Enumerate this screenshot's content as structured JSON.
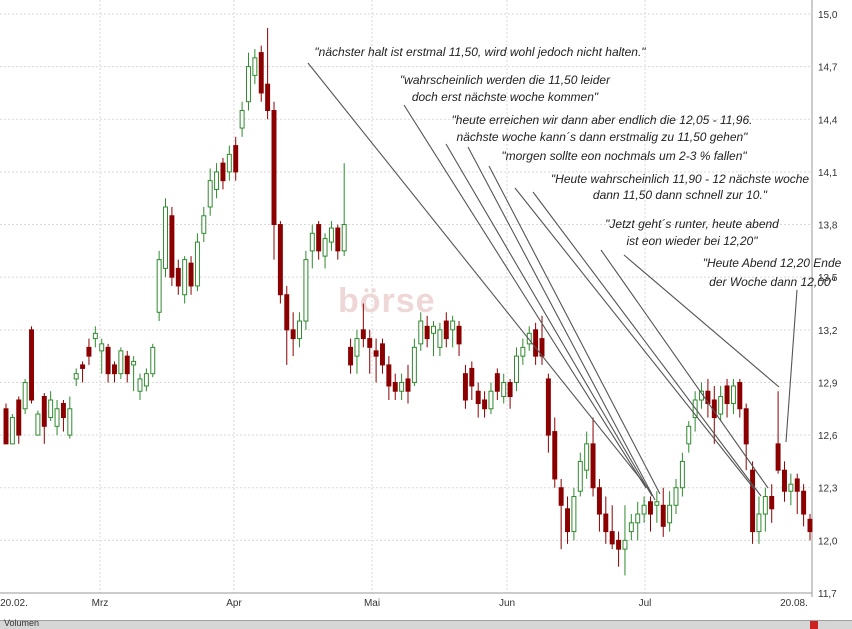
{
  "chart_data": {
    "type": "candlestick",
    "x_tick_labels": [
      "20.02.",
      "Mrz",
      "Apr",
      "Mai",
      "Jun",
      "Jul",
      "20.08."
    ],
    "y_tick_labels": [
      "11,7",
      "12,0",
      "12,3",
      "12,6",
      "12,9",
      "13,2",
      "13,5",
      "13,8",
      "14,1",
      "14,4",
      "14,7",
      "15,0"
    ],
    "ylim": [
      11.7,
      15.0
    ],
    "grid": true,
    "up_color": "#2e8b2e",
    "down_color": "#8b0000",
    "candles": [
      [
        12.75,
        12.55,
        12.78,
        12.55
      ],
      [
        12.55,
        12.7,
        12.72,
        12.55
      ],
      [
        12.8,
        12.6,
        12.82,
        12.55
      ],
      [
        12.75,
        12.9,
        12.92,
        12.72
      ],
      [
        13.2,
        12.8,
        13.22,
        12.78
      ],
      [
        12.6,
        12.72,
        12.74,
        12.6
      ],
      [
        12.82,
        12.65,
        12.84,
        12.55
      ],
      [
        12.7,
        12.8,
        12.85,
        12.68
      ],
      [
        12.65,
        12.75,
        12.8,
        12.6
      ],
      [
        12.78,
        12.7,
        12.8,
        12.62
      ],
      [
        12.6,
        12.75,
        12.82,
        12.58
      ],
      [
        12.92,
        12.95,
        12.98,
        12.88
      ],
      [
        13.0,
        12.98,
        13.02,
        12.9
      ],
      [
        13.1,
        13.05,
        13.15,
        13.0
      ],
      [
        13.15,
        13.18,
        13.22,
        13.1
      ],
      [
        13.08,
        13.12,
        13.15,
        12.95
      ],
      [
        13.1,
        12.95,
        13.12,
        12.9
      ],
      [
        13.0,
        12.95,
        13.02,
        12.9
      ],
      [
        12.95,
        13.08,
        13.1,
        12.92
      ],
      [
        13.05,
        12.95,
        13.08,
        12.9
      ],
      [
        13.0,
        13.02,
        13.05,
        12.85
      ],
      [
        12.85,
        12.92,
        12.95,
        12.8
      ],
      [
        12.88,
        12.95,
        12.98,
        12.85
      ],
      [
        12.95,
        13.1,
        13.12,
        12.93
      ],
      [
        13.3,
        13.6,
        13.65,
        13.25
      ],
      [
        13.55,
        13.9,
        13.95,
        13.5
      ],
      [
        13.85,
        13.5,
        13.9,
        13.45
      ],
      [
        13.55,
        13.45,
        13.6,
        13.4
      ],
      [
        13.4,
        13.6,
        13.62,
        13.35
      ],
      [
        13.58,
        13.45,
        13.62,
        13.4
      ],
      [
        13.45,
        13.7,
        13.75,
        13.42
      ],
      [
        13.75,
        13.85,
        13.9,
        13.7
      ],
      [
        13.9,
        14.05,
        14.12,
        13.85
      ],
      [
        14.0,
        14.1,
        14.15,
        13.95
      ],
      [
        14.15,
        14.05,
        14.18,
        14.0
      ],
      [
        14.1,
        14.2,
        14.25,
        14.05
      ],
      [
        14.25,
        14.1,
        14.3,
        14.05
      ],
      [
        14.35,
        14.45,
        14.5,
        14.3
      ],
      [
        14.5,
        14.7,
        14.78,
        14.45
      ],
      [
        14.65,
        14.75,
        14.8,
        14.6
      ],
      [
        14.78,
        14.55,
        14.82,
        14.5
      ],
      [
        14.6,
        14.45,
        14.92,
        14.4
      ],
      [
        14.45,
        13.8,
        14.5,
        13.6
      ],
      [
        13.8,
        13.4,
        13.82,
        13.35
      ],
      [
        13.4,
        13.2,
        13.45,
        13.0
      ],
      [
        13.2,
        13.15,
        13.3,
        13.05
      ],
      [
        13.15,
        13.25,
        13.3,
        13.1
      ],
      [
        13.25,
        13.6,
        13.65,
        13.2
      ],
      [
        13.65,
        13.75,
        13.8,
        13.55
      ],
      [
        13.8,
        13.65,
        13.82,
        13.6
      ],
      [
        13.62,
        13.72,
        13.75,
        13.55
      ],
      [
        13.7,
        13.78,
        13.82,
        13.65
      ],
      [
        13.78,
        13.65,
        13.8,
        13.6
      ],
      [
        13.65,
        13.8,
        14.15,
        13.62
      ],
      [
        13.1,
        13.0,
        13.15,
        12.95
      ],
      [
        13.05,
        13.15,
        13.2,
        12.95
      ],
      [
        13.2,
        13.15,
        13.35,
        13.1
      ],
      [
        13.15,
        13.1,
        13.2,
        12.95
      ],
      [
        13.08,
        13.05,
        13.15,
        12.9
      ],
      [
        13.12,
        13.0,
        13.15,
        12.95
      ],
      [
        13.0,
        12.88,
        13.05,
        12.8
      ],
      [
        12.9,
        12.85,
        12.95,
        12.8
      ],
      [
        12.85,
        12.9,
        12.95,
        12.8
      ],
      [
        12.92,
        12.85,
        13.0,
        12.78
      ],
      [
        12.9,
        13.1,
        13.15,
        12.88
      ],
      [
        13.12,
        13.25,
        13.3,
        13.08
      ],
      [
        13.22,
        13.15,
        13.28,
        13.1
      ],
      [
        13.18,
        13.22,
        13.25,
        13.05
      ],
      [
        13.1,
        13.2,
        13.24,
        13.05
      ],
      [
        13.25,
        13.15,
        13.3,
        13.1
      ],
      [
        13.2,
        13.25,
        13.28,
        13.1
      ],
      [
        13.22,
        13.12,
        13.25,
        13.05
      ],
      [
        12.95,
        12.8,
        13.0,
        12.75
      ],
      [
        12.98,
        12.88,
        13.02,
        12.8
      ],
      [
        12.85,
        12.78,
        12.9,
        12.7
      ],
      [
        12.8,
        12.75,
        12.85,
        12.7
      ],
      [
        12.75,
        12.85,
        12.9,
        12.72
      ],
      [
        12.95,
        12.85,
        12.98,
        12.8
      ],
      [
        12.82,
        12.9,
        12.95,
        12.78
      ],
      [
        12.9,
        12.82,
        12.92,
        12.75
      ],
      [
        12.9,
        13.05,
        13.1,
        12.85
      ],
      [
        13.05,
        13.1,
        13.15,
        13.0
      ],
      [
        13.12,
        13.18,
        13.22,
        13.08
      ],
      [
        13.2,
        13.05,
        13.24,
        13.0
      ],
      [
        13.15,
        13.05,
        13.28,
        13.0
      ],
      [
        12.92,
        12.6,
        12.95,
        12.5
      ],
      [
        12.62,
        12.35,
        12.7,
        12.3
      ],
      [
        12.3,
        12.2,
        12.35,
        11.95
      ],
      [
        12.18,
        12.05,
        12.25,
        11.98
      ],
      [
        12.05,
        12.25,
        12.3,
        12.0
      ],
      [
        12.28,
        12.45,
        12.5,
        12.25
      ],
      [
        12.4,
        12.55,
        12.62,
        12.35
      ],
      [
        12.55,
        12.3,
        12.7,
        12.25
      ],
      [
        12.3,
        12.15,
        12.35,
        12.05
      ],
      [
        12.15,
        12.05,
        12.25,
        11.98
      ],
      [
        12.05,
        11.98,
        12.2,
        11.95
      ],
      [
        12.0,
        11.95,
        12.05,
        11.85
      ],
      [
        11.95,
        12.0,
        12.2,
        11.8
      ],
      [
        12.05,
        12.1,
        12.15,
        12.0
      ],
      [
        12.1,
        12.15,
        12.22,
        12.0
      ],
      [
        12.15,
        12.2,
        12.25,
        12.1
      ],
      [
        12.22,
        12.15,
        12.25,
        12.05
      ],
      [
        12.2,
        12.22,
        12.28,
        12.1
      ],
      [
        12.2,
        12.08,
        12.3,
        12.02
      ],
      [
        12.1,
        12.2,
        12.28,
        12.05
      ],
      [
        12.2,
        12.3,
        12.35,
        12.15
      ],
      [
        12.3,
        12.45,
        12.5,
        12.25
      ],
      [
        12.55,
        12.65,
        12.68,
        12.5
      ],
      [
        12.7,
        12.8,
        12.85,
        12.62
      ],
      [
        12.8,
        12.85,
        12.9,
        12.75
      ],
      [
        12.85,
        12.78,
        12.92,
        12.7
      ],
      [
        12.8,
        12.7,
        12.88,
        12.55
      ],
      [
        12.72,
        12.82,
        12.88,
        12.68
      ],
      [
        12.88,
        12.78,
        12.92,
        12.7
      ],
      [
        12.78,
        12.88,
        12.92,
        12.72
      ],
      [
        12.9,
        12.75,
        12.92,
        12.7
      ],
      [
        12.75,
        12.55,
        12.78,
        12.4
      ],
      [
        12.4,
        12.05,
        12.45,
        11.98
      ],
      [
        12.05,
        12.15,
        12.25,
        11.98
      ],
      [
        12.15,
        12.25,
        12.3,
        12.05
      ],
      [
        12.25,
        12.18,
        12.32,
        12.1
      ],
      [
        12.55,
        12.4,
        12.85,
        12.38
      ],
      [
        12.4,
        12.28,
        12.45,
        12.22
      ],
      [
        12.28,
        12.32,
        12.38,
        12.2
      ],
      [
        12.35,
        12.28,
        12.38,
        12.15
      ],
      [
        12.28,
        12.15,
        12.32,
        12.08
      ],
      [
        12.12,
        12.05,
        12.15,
        12.0
      ]
    ],
    "annotations": [
      {
        "text": "\"nächster halt ist erstmal 11,50, wird wohl jedoch nicht halten.\""
      },
      {
        "text": "\"wahrscheinlich werden die 11,50 leider",
        "text2": "doch erst nächste woche kommen\""
      },
      {
        "text": "\"heute erreichen wir dann aber endlich die 12,05 - 11,96.",
        "text2": "nächste woche kann´s dann erstmalig zu 11,50 gehen\""
      },
      {
        "text": "\"morgen sollte eon nochmals um 2-3 % fallen\""
      },
      {
        "text": "\"Heute wahrscheinlich 11,90 - 12 nächste woche",
        "text2": "dann 11,50 dann schnell zur 10.\""
      },
      {
        "text": "\"Jetzt geht´s runter, heute abend",
        "text2": "ist eon wieder bei 12,20\""
      },
      {
        "text": "\"Heute Abend 12,20 Ende",
        "text2": "der Woche dann  12,00\""
      }
    ]
  },
  "volume_panel": {
    "label": "Volumen"
  }
}
